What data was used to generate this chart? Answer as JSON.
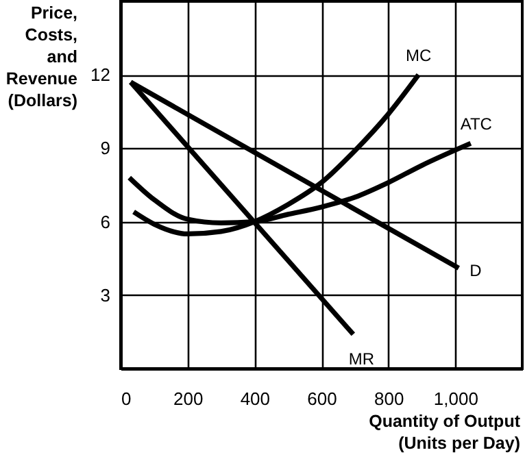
{
  "chart_data": {
    "type": "line",
    "xlabel": "Quantity of Output\n(Units per Day)",
    "ylabel": "Price,\nCosts,\nand\nRevenue\n(Dollars)",
    "xlim": [
      0,
      1200
    ],
    "ylim": [
      0,
      15
    ],
    "xticks": [
      0,
      200,
      400,
      600,
      800,
      {
        "value": 1000,
        "label": "1,000"
      }
    ],
    "yticks": [
      3,
      6,
      9,
      12
    ],
    "grid": true,
    "marker": "none",
    "line_style": "solid",
    "series": [
      {
        "name": "MC",
        "color": "#000000",
        "x": [
          39,
          100,
          200,
          300,
          400,
          500,
          600,
          700,
          800,
          890
        ],
        "values": [
          6.4,
          5.9,
          5.5,
          5.6,
          6,
          6.7,
          7.6,
          8.9,
          10.4,
          12
        ]
      },
      {
        "name": "ATC",
        "color": "#000000",
        "x": [
          26,
          100,
          200,
          300,
          400,
          500,
          600,
          700,
          800,
          900,
          1046
        ],
        "values": [
          7.8,
          6.9,
          6.1,
          5.95,
          6,
          6.3,
          6.6,
          7,
          7.6,
          8.3,
          9.2
        ]
      },
      {
        "name": "D",
        "color": "#000000",
        "x": [
          30,
          1010
        ],
        "values": [
          11.7,
          4.1
        ]
      },
      {
        "name": "MR",
        "color": "#000000",
        "x": [
          30,
          695
        ],
        "values": [
          11.7,
          1.4
        ]
      }
    ]
  }
}
